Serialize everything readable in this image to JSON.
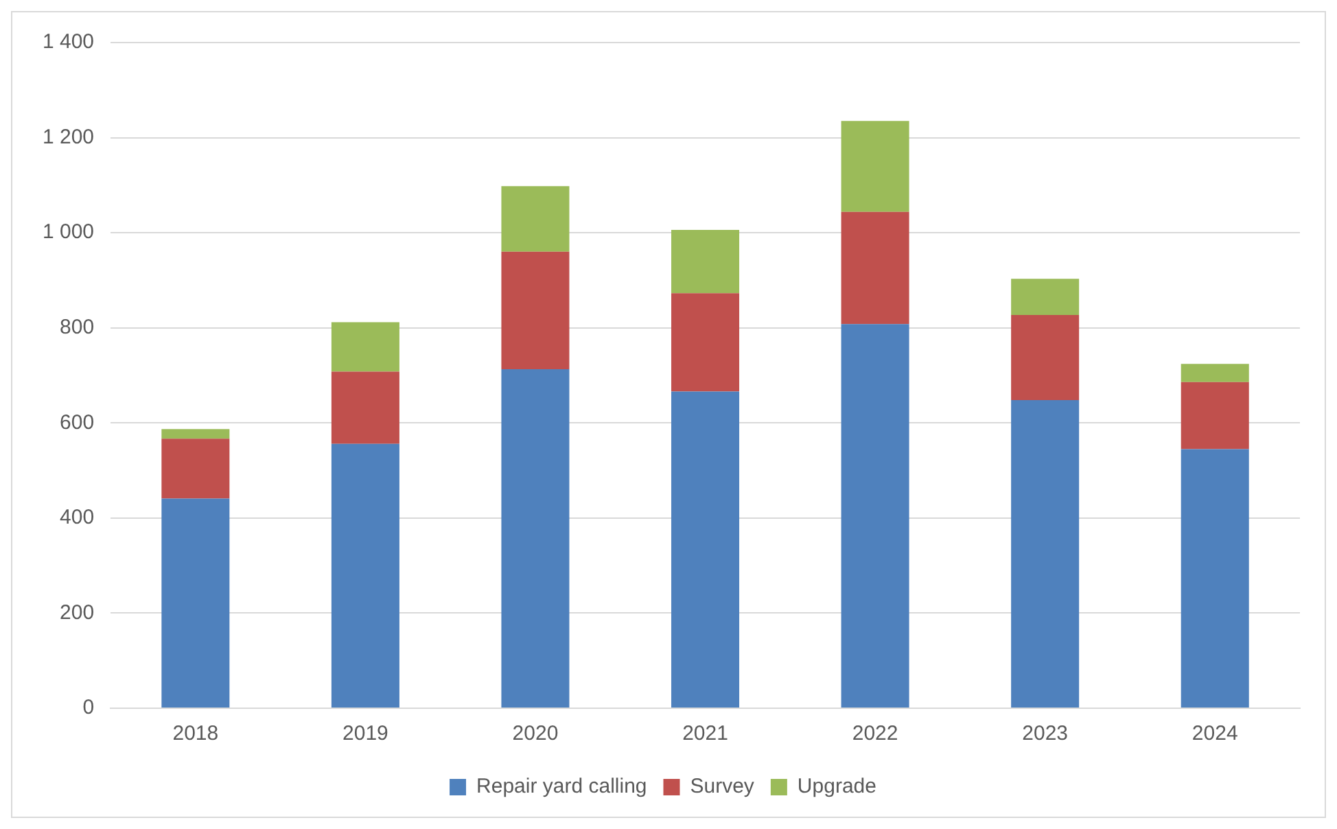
{
  "chart_data": {
    "type": "bar",
    "stacked": true,
    "categories": [
      "2018",
      "2019",
      "2020",
      "2021",
      "2022",
      "2023",
      "2024"
    ],
    "series": [
      {
        "name": "Repair yard calling",
        "color": "#4f81bd",
        "values": [
          441,
          556,
          713,
          666,
          808,
          648,
          545
        ]
      },
      {
        "name": "Survey",
        "color": "#c0504d",
        "values": [
          126,
          152,
          247,
          207,
          236,
          179,
          141
        ]
      },
      {
        "name": "Upgrade",
        "color": "#9bbb59",
        "values": [
          20,
          104,
          138,
          133,
          191,
          76,
          38
        ]
      }
    ],
    "ylim": [
      0,
      1400
    ],
    "yticks": [
      0,
      200,
      400,
      600,
      800,
      {
        "value": 1000,
        "label": "1 000"
      },
      {
        "value": 1200,
        "label": "1 200"
      },
      {
        "value": 1400,
        "label": "1 400"
      }
    ],
    "grid": "y",
    "legend": "bottom"
  }
}
